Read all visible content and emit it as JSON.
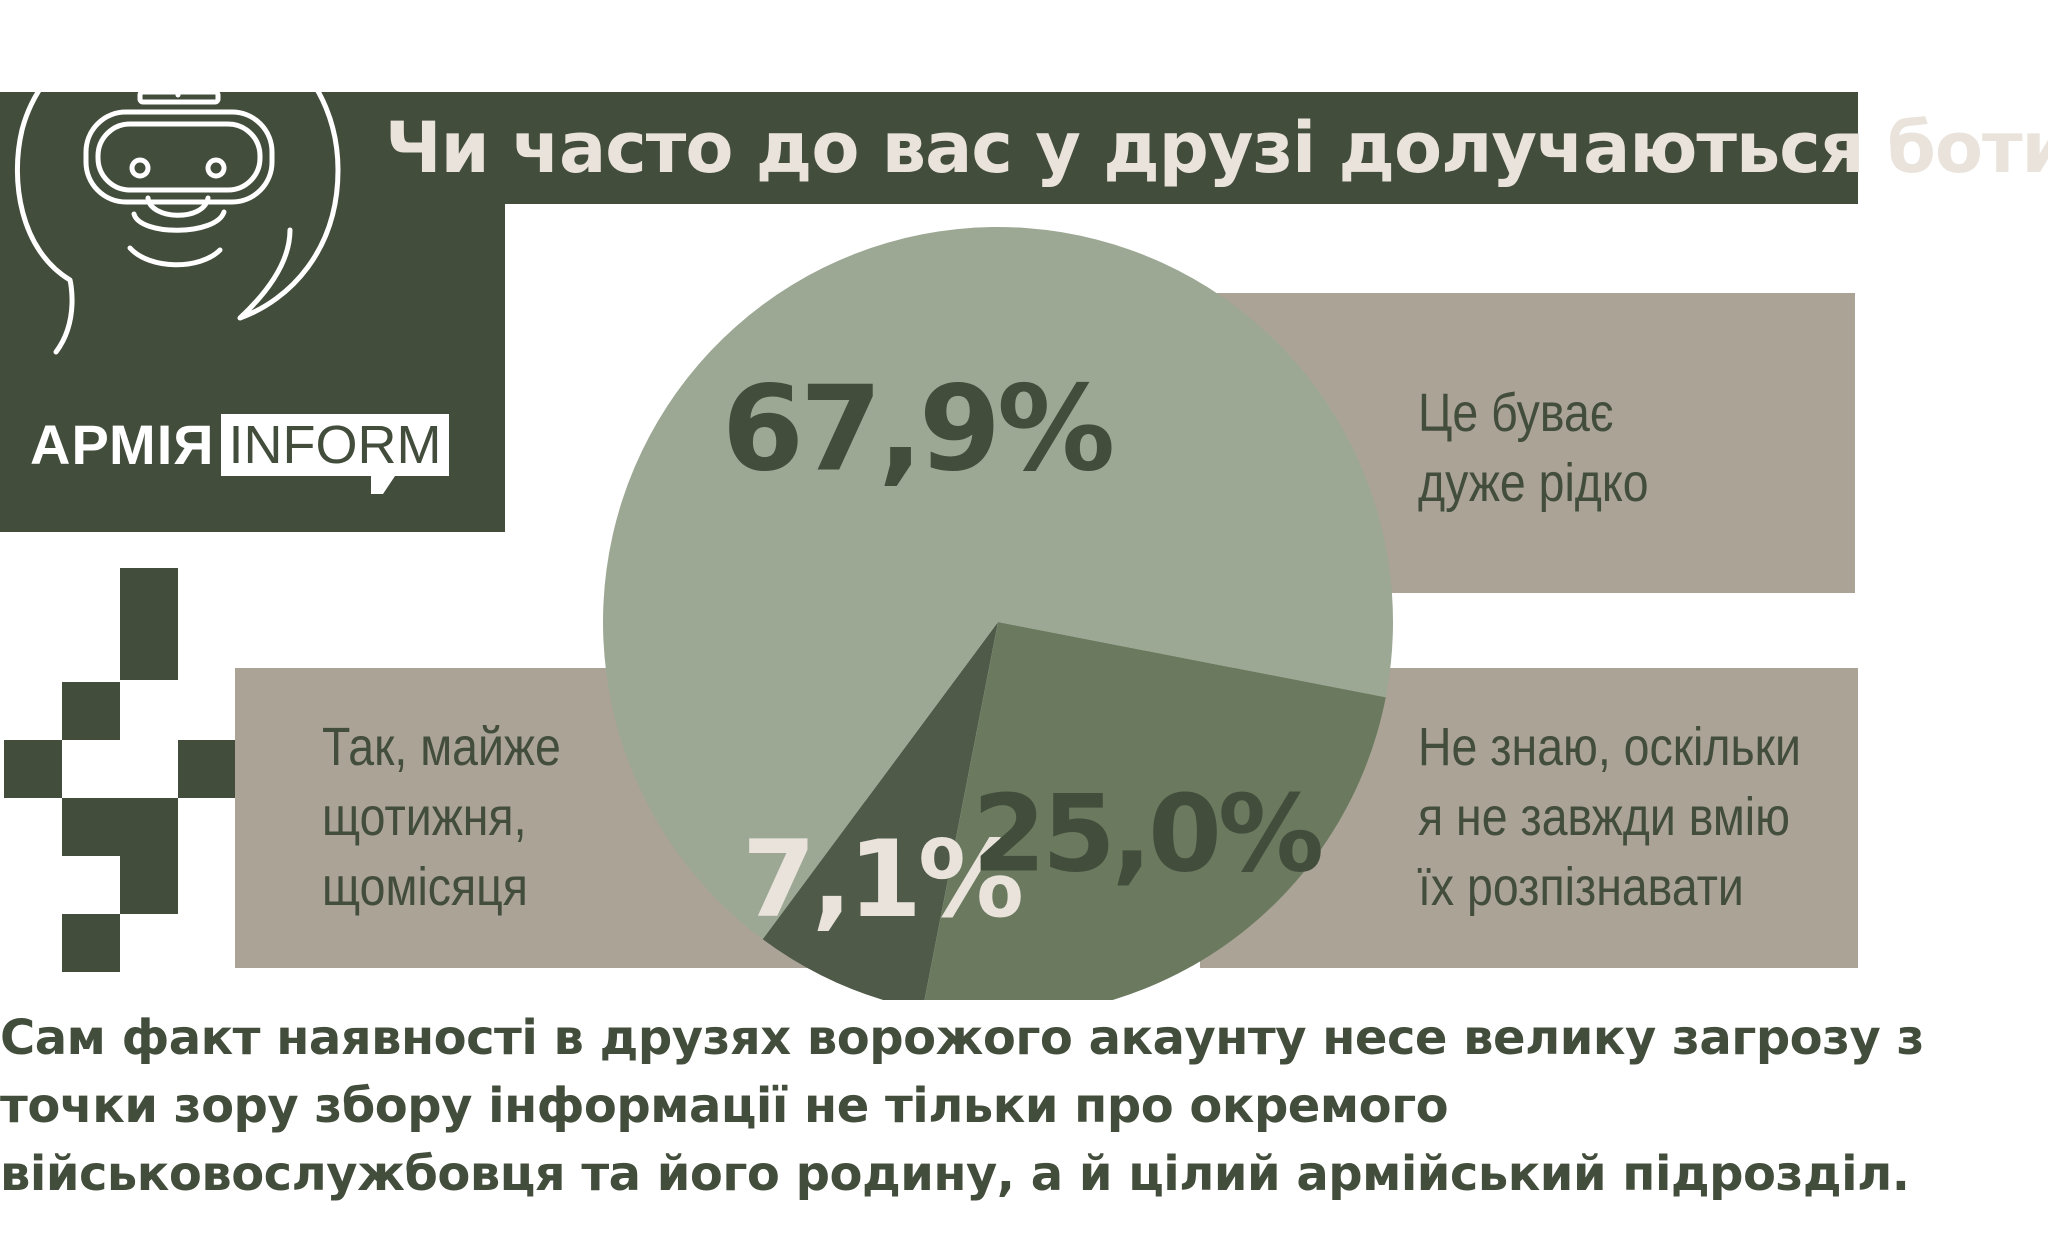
{
  "header": {
    "title": "Чи часто до вас у друзі долучаються боти?"
  },
  "brand": {
    "part_a": "АРМІЯ",
    "part_b": "INFORM"
  },
  "colors": {
    "dark": "#434d3c",
    "light_text": "#e9e3dc",
    "box": "#aaa396",
    "slice_rare": "#9ca894",
    "slice_unknown": "#6b7a5f",
    "slice_weekly": "#4f5a48"
  },
  "chart_data": {
    "type": "pie",
    "categories": [
      "Так, майже щотижня, щомісяця",
      "Це буває дуже рідко",
      "Не знаю, оскільки я не завжди вмію їх розпізнавати"
    ],
    "values": [
      7.1,
      67.9,
      25.0
    ],
    "labels": [
      "7,1%",
      "67,9%",
      "25,0%"
    ],
    "unit": "%"
  },
  "caption": "Сам факт наявності в друзях ворожого акаунту несе велику загрозу з точки зору збору інформації не тільки про окремого військовослужбовця та його родину, а й цілий армійський підрозділ."
}
